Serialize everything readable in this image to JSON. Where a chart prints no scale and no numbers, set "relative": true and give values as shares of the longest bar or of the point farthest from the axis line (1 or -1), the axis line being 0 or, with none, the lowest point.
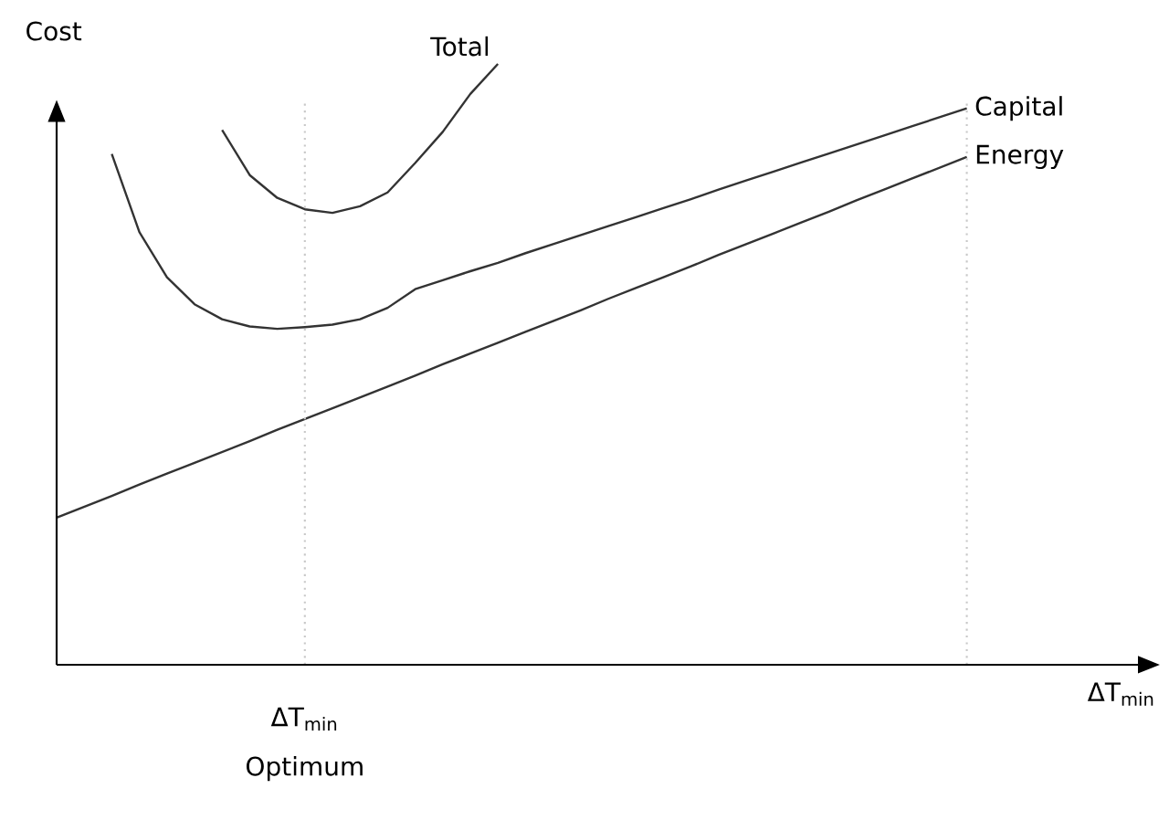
{
  "chart_data": {
    "type": "line",
    "relative": true,
    "xlabel": "ΔT$_{min}$",
    "ylabel": "Cost",
    "marker": "none",
    "line_style": "solid",
    "categories": [
      null,
      null,
      null,
      null,
      null,
      null,
      null,
      null,
      null,
      null,
      null,
      null,
      null,
      null,
      null,
      null,
      null,
      null,
      null,
      null,
      null,
      null,
      null,
      null,
      null,
      null,
      null,
      null,
      null,
      null,
      null,
      null,
      null,
      null,
      null,
      null,
      null,
      null,
      null,
      null,
      null
    ],
    "annotations": [
      "ΔT$_{min}$",
      "Optimum"
    ],
    "series": [
      {
        "name": "Total",
        "color": "#333333",
        "values": [
          null,
          null,
          null,
          null,
          null,
          null,
          0.89,
          0.815,
          0.777,
          0.758,
          0.752,
          0.763,
          0.786,
          0.835,
          0.887,
          0.95,
          1.0,
          null,
          null,
          null,
          null,
          null,
          null,
          null,
          null,
          null,
          null,
          null,
          null,
          null,
          null,
          null,
          null,
          null,
          null,
          null,
          null,
          null,
          null,
          null,
          null
        ]
      },
      {
        "name": "Capital",
        "color": "#333333",
        "values": [
          null,
          null,
          0.85,
          0.72,
          0.645,
          0.6,
          0.575,
          0.563,
          0.559,
          0.562,
          0.566,
          0.575,
          0.594,
          0.625,
          0.64,
          0.655,
          0.669,
          0.685,
          0.7,
          0.715,
          0.73,
          0.745,
          0.76,
          0.775,
          0.791,
          0.806,
          0.821,
          0.836,
          0.851,
          0.866,
          0.881,
          0.896,
          0.911,
          0.926,
          null,
          null,
          null,
          null,
          null,
          null,
          null
        ]
      },
      {
        "name": "Energy",
        "color": "#333333",
        "values": [
          0.245,
          0.263,
          0.281,
          0.3,
          0.318,
          0.336,
          0.354,
          0.372,
          0.391,
          0.409,
          0.427,
          0.445,
          0.463,
          0.481,
          0.5,
          0.518,
          0.536,
          0.554,
          0.572,
          0.59,
          0.609,
          0.627,
          0.645,
          0.663,
          0.682,
          0.7,
          0.718,
          0.736,
          0.754,
          0.773,
          0.791,
          0.809,
          0.827,
          0.845,
          null,
          null,
          null,
          null,
          null,
          null,
          null
        ]
      }
    ]
  }
}
